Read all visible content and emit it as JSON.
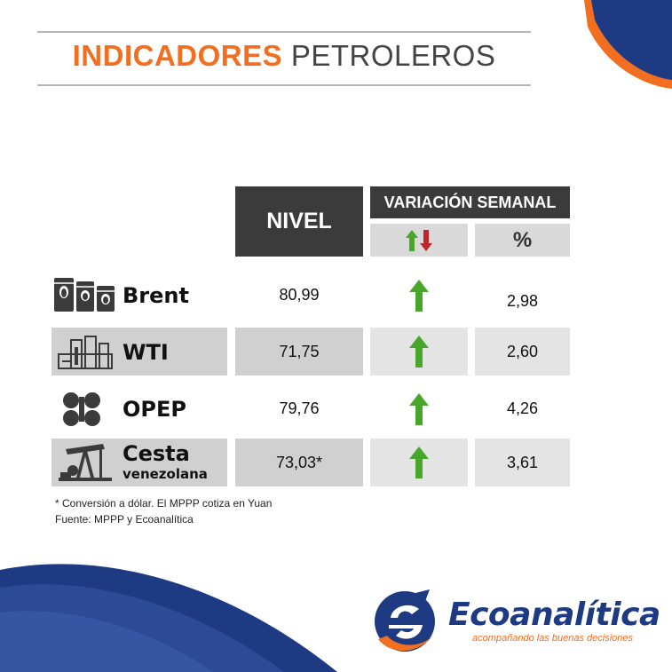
{
  "title": {
    "part1": "INDICADORES",
    "part2": "PETROLEROS"
  },
  "headers": {
    "nivel": "NIVEL",
    "variacion": "VARIACIÓN SEMANAL",
    "percent": "%"
  },
  "rows": [
    {
      "name": "Brent",
      "subname": "",
      "icon": "oil-barrels-icon",
      "nivel": "80,99",
      "direction": "up",
      "percent": "2,98"
    },
    {
      "name": "WTI",
      "subname": "",
      "icon": "refinery-icon",
      "nivel": "71,75",
      "direction": "up",
      "percent": "2,60"
    },
    {
      "name": "OPEP",
      "subname": "",
      "icon": "opec-logo-icon",
      "nivel": "79,76",
      "direction": "up",
      "percent": "4,26"
    },
    {
      "name": "Cesta",
      "subname": "venezolana",
      "icon": "oil-pump-icon",
      "nivel": "73,03*",
      "direction": "up",
      "percent": "3,61"
    }
  ],
  "notes": {
    "line1": "* Conversión a dólar. El MPPP cotiza en Yuan",
    "line2": "Fuente: MPPP y Ecoanalítica"
  },
  "logo": {
    "name": "Ecoanalítica",
    "tagline": "acompañando las buenas decisiones"
  },
  "colors": {
    "accent_orange": "#f26e21",
    "brand_blue": "#1d3a82",
    "header_dark": "#3b3b3b",
    "arrow_up": "#49a52c",
    "arrow_down": "#c0272d"
  }
}
